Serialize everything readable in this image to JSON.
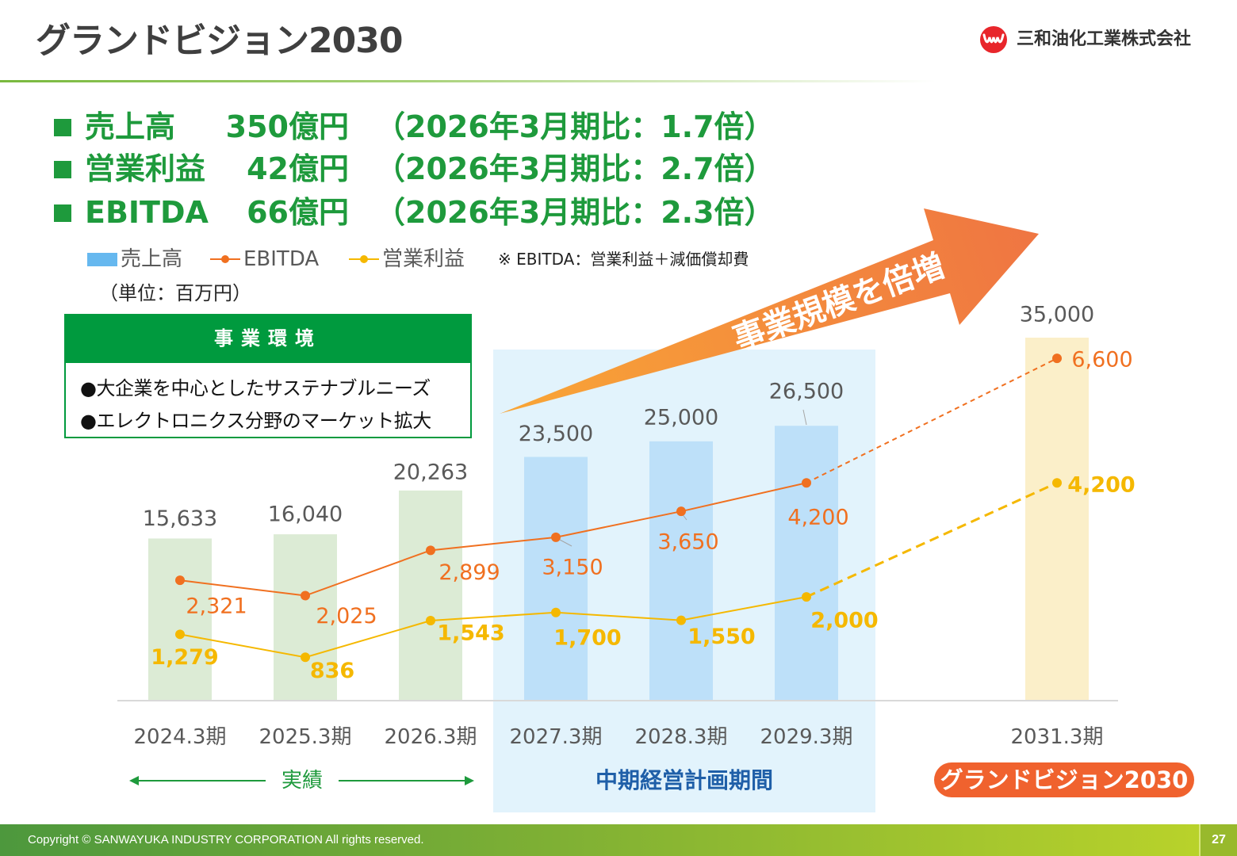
{
  "header": {
    "title": "グランドビジョン2030",
    "company": "三和油化工業株式会社",
    "logo_icon": "sanwayuka-logo-icon"
  },
  "highlights": [
    {
      "label": "売上高",
      "value": "350億円",
      "comparison": "（2026年3月期比：1.7倍）"
    },
    {
      "label": "営業利益",
      "value": "42億円",
      "comparison": "（2026年3月期比：2.7倍）"
    },
    {
      "label": "EBITDA",
      "value": "66億円",
      "comparison": "（2026年3月期比：2.3倍）"
    }
  ],
  "legend_note": "※ EBITDA：営業利益＋減価償却費",
  "unit": "（単位：百万円）",
  "environment_box": {
    "title": "事業環境",
    "items": [
      "●大企業を中心としたサステナブルニーズ",
      "●エレクトロニクス分野のマーケット拡大"
    ]
  },
  "arrow_text": "事業規模を倍増",
  "periods": {
    "actual": "実績",
    "mid_term": "中期経営計画期間",
    "vision": "グランドビジョン2030"
  },
  "colors": {
    "highlight": "#1e9a3c",
    "environment_header": "#009a3e",
    "mid_term_shading": "#e2f3fc",
    "mid_term_text": "#1f5fa8",
    "vision_pill": "#f0622e",
    "arrow_start": "#f9a636",
    "arrow_end": "#ef7542"
  },
  "chart_data": {
    "type": "bar",
    "categories": [
      "2024.3期",
      "2025.3期",
      "2026.3期",
      "2027.3期",
      "2028.3期",
      "2029.3期",
      "2031.3期"
    ],
    "series": [
      {
        "name": "売上高",
        "type": "bar",
        "axis": "primary",
        "values": [
          15633,
          16040,
          20263,
          23500,
          25000,
          26500,
          35000
        ],
        "color": "#66b8ef"
      },
      {
        "name": "EBITDA",
        "type": "line",
        "axis": "secondary",
        "values": [
          2321,
          2025,
          2899,
          3150,
          3650,
          4200,
          6600
        ],
        "color": "#f07020"
      },
      {
        "name": "営業利益",
        "type": "line",
        "axis": "secondary",
        "values": [
          1279,
          836,
          1543,
          1700,
          1550,
          2000,
          4200
        ],
        "color": "#f5b800"
      }
    ],
    "bar_colors": [
      "#dcebd5",
      "#dcebd5",
      "#dcebd5",
      "#bde0f9",
      "#bde0f9",
      "#bde0f9",
      "#fbefc9"
    ],
    "ylim": [
      0,
      35000
    ],
    "y2lim": [
      0,
      7000
    ],
    "legend": "top-left",
    "grid": false
  },
  "footer": {
    "copyright": "Copyright © SANWAYUKA INDUSTRY CORPORATION All rights reserved.",
    "page": "27"
  }
}
